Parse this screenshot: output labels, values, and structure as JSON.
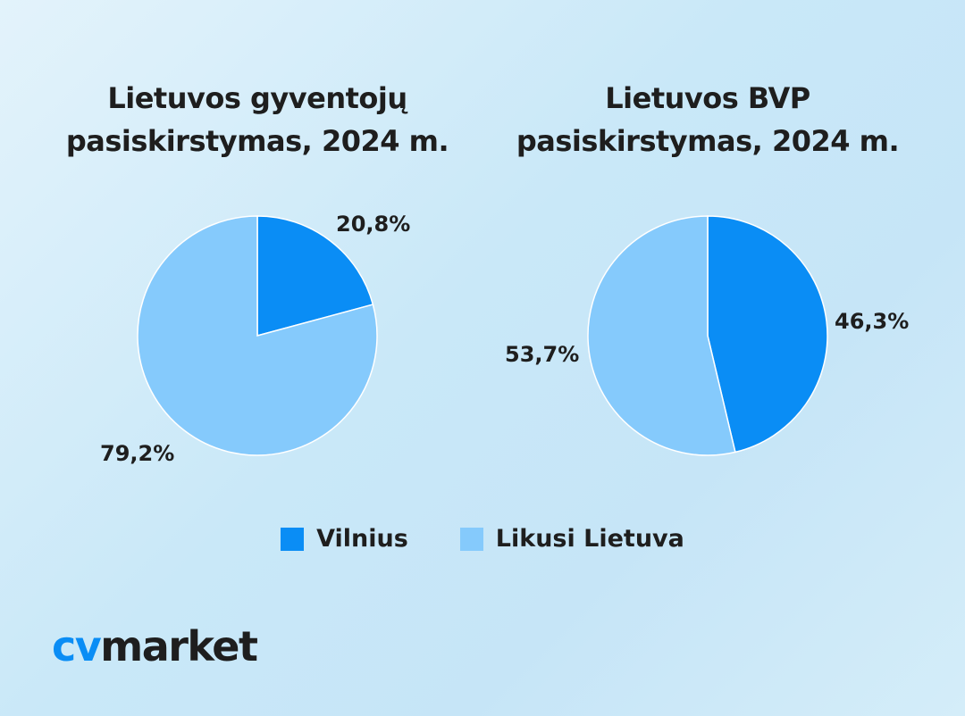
{
  "chart_data": [
    {
      "type": "pie",
      "title_line1": "Lietuvos gyventojų",
      "title_line2": "pasiskirstymas, 2024 m.",
      "categories": [
        "Vilnius",
        "Likusi Lietuva"
      ],
      "values": [
        20.8,
        79.2
      ],
      "labels": [
        "20,8%",
        "79,2%"
      ]
    },
    {
      "type": "pie",
      "title_line1": "Lietuvos BVP",
      "title_line2": "pasiskirstymas, 2024 m.",
      "categories": [
        "Vilnius",
        "Likusi Lietuva"
      ],
      "values": [
        46.3,
        53.7
      ],
      "labels": [
        "46,3%",
        "53,7%"
      ]
    }
  ],
  "legend": [
    {
      "label": "Vilnius",
      "color": "#0a8df5"
    },
    {
      "label": "Likusi Lietuva",
      "color": "#85cafc"
    }
  ],
  "colors": {
    "primary": "#0a8df5",
    "secondary": "#85cafc"
  },
  "logo": {
    "part1": "cv",
    "part2": "market"
  }
}
